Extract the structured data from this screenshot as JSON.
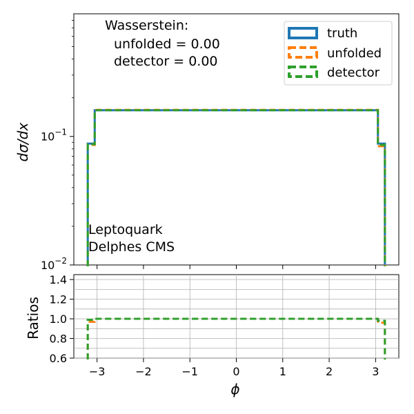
{
  "chart_data": [
    {
      "type": "histogram",
      "panel": "main",
      "ylabel": "dσ/dx",
      "yscale": "log",
      "ylim": [
        0.01,
        0.9
      ],
      "xlim": [
        -3.5,
        3.5
      ],
      "yticks": [
        {
          "value": 0.01,
          "base": "10",
          "exp": "−2"
        },
        {
          "value": 0.1,
          "base": "10",
          "exp": "−1"
        }
      ],
      "annotation": {
        "title": "Wasserstein:",
        "lines": [
          "unfolded = 0.00",
          "detector = 0.00"
        ]
      },
      "label": [
        "Leptoquark",
        "Delphes CMS"
      ],
      "legend_position": "top-right",
      "bin_edges": [
        -3.2,
        -3.05,
        3.05,
        3.2
      ],
      "series": [
        {
          "name": "truth",
          "color": "#1f77b4",
          "style": "solid",
          "values": [
            0.088,
            0.16,
            0.088
          ]
        },
        {
          "name": "unfolded",
          "color": "#ff7f0e",
          "style": "dashed",
          "values": [
            0.086,
            0.161,
            0.084
          ]
        },
        {
          "name": "detector",
          "color": "#2ca02c",
          "style": "dashed",
          "values": [
            0.087,
            0.16,
            0.086
          ]
        }
      ]
    },
    {
      "type": "ratio",
      "panel": "ratio",
      "ylabel": "Ratios",
      "xlabel": "ϕ",
      "ylim": [
        0.6,
        1.45
      ],
      "xlim": [
        -3.5,
        3.5
      ],
      "grid": true,
      "yticks": [
        "0.6",
        "0.8",
        "1.0",
        "1.2",
        "1.4"
      ],
      "xticks": [
        "−3",
        "−2",
        "−1",
        "0",
        "1",
        "2",
        "3"
      ],
      "series": [
        {
          "name": "unfolded",
          "color": "#ff7f0e",
          "style": "dashed",
          "values": [
            0.97,
            1.0,
            0.96
          ]
        },
        {
          "name": "detector",
          "color": "#2ca02c",
          "style": "dashed",
          "values": [
            0.99,
            1.0,
            0.98
          ]
        }
      ]
    }
  ]
}
